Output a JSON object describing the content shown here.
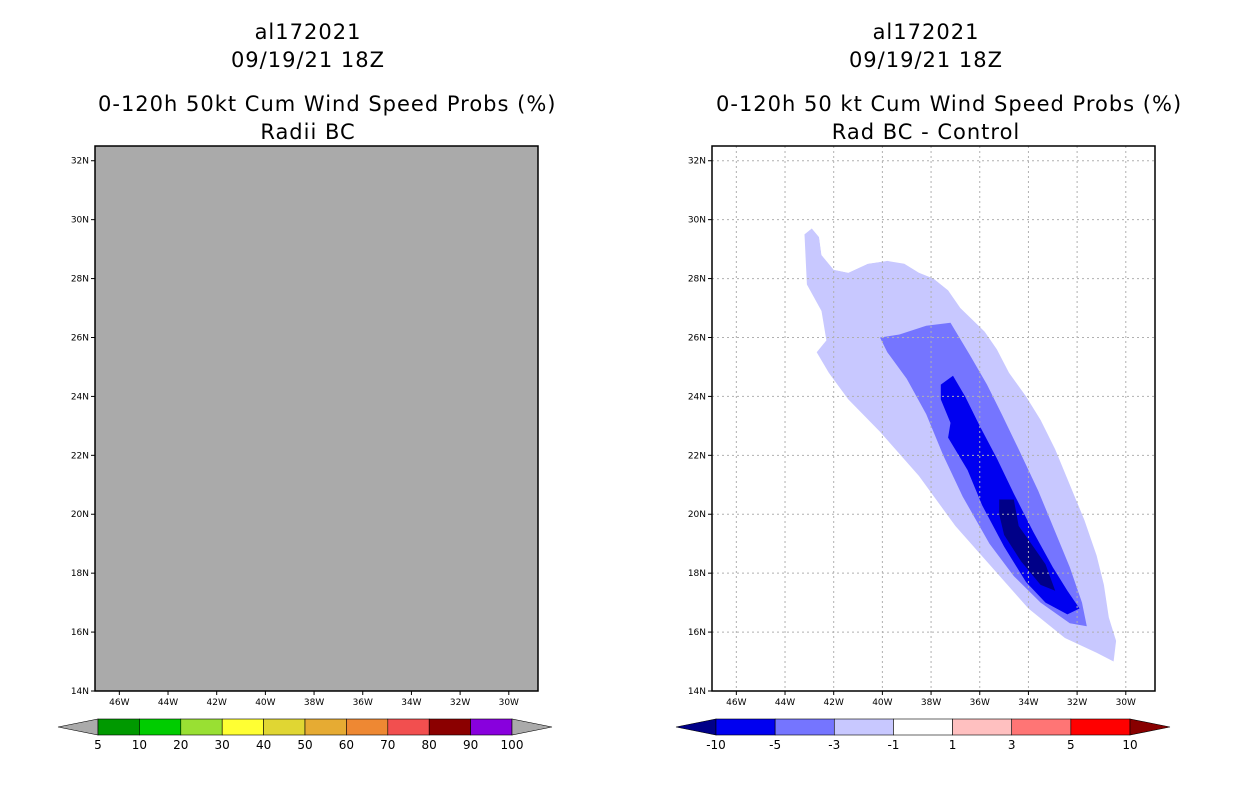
{
  "chart_data": [
    {
      "type": "heatmap",
      "id": "left",
      "title_lines": [
        "al172021",
        "09/19/21 18Z",
        "0-120h 50kt Cum Wind Speed Probs (%)",
        "Radii BC"
      ],
      "x_ticks": [
        "46W",
        "44W",
        "42W",
        "40W",
        "38W",
        "36W",
        "34W",
        "32W",
        "30W"
      ],
      "x_values": [
        -46,
        -44,
        -42,
        -40,
        -38,
        -36,
        -34,
        -32,
        -30
      ],
      "y_ticks": [
        "32N",
        "30N",
        "28N",
        "26N",
        "24N",
        "22N",
        "20N",
        "18N",
        "16N",
        "14N"
      ],
      "y_values": [
        32,
        30,
        28,
        26,
        24,
        22,
        20,
        18,
        16,
        14
      ],
      "xlim": [
        -47,
        -28.8
      ],
      "ylim": [
        14,
        32.5
      ],
      "grid": false,
      "fill_color": "#aaaaaa",
      "colorbar": {
        "labels": [
          "5",
          "10",
          "20",
          "30",
          "40",
          "50",
          "60",
          "70",
          "80",
          "90",
          "100"
        ],
        "colors": [
          "#009900",
          "#00cc00",
          "#99e033",
          "#ffff33",
          "#e0d633",
          "#e6ab33",
          "#ee8833",
          "#f24f4f",
          "#8b0000",
          "#8800dd"
        ],
        "under_color": "#aaaaaa",
        "over_color": "#aaaaaa"
      }
    },
    {
      "type": "heatmap",
      "id": "right",
      "title_lines": [
        "al172021",
        "09/19/21 18Z",
        "0-120h 50 kt Cum Wind Speed Probs (%)",
        "Rad BC - Control"
      ],
      "x_ticks": [
        "46W",
        "44W",
        "42W",
        "40W",
        "38W",
        "36W",
        "34W",
        "32W",
        "30W"
      ],
      "x_values": [
        -46,
        -44,
        -42,
        -40,
        -38,
        -36,
        -34,
        -32,
        -30
      ],
      "y_ticks": [
        "32N",
        "30N",
        "28N",
        "26N",
        "24N",
        "22N",
        "20N",
        "18N",
        "16N",
        "14N"
      ],
      "y_values": [
        32,
        30,
        28,
        26,
        24,
        22,
        20,
        18,
        16,
        14
      ],
      "xlim": [
        -47,
        -28.8
      ],
      "ylim": [
        14,
        32.5
      ],
      "grid": true,
      "regions": [
        {
          "name": "contour-fill-minus1-to-minus3",
          "level": "-3 to -1",
          "color": "#c8c8ff",
          "points": [
            [
              -43.2,
              29.5
            ],
            [
              -42.9,
              29.7
            ],
            [
              -42.6,
              29.4
            ],
            [
              -42.5,
              28.8
            ],
            [
              -42.0,
              28.3
            ],
            [
              -41.4,
              28.2
            ],
            [
              -40.6,
              28.5
            ],
            [
              -39.8,
              28.6
            ],
            [
              -39.1,
              28.5
            ],
            [
              -38.5,
              28.2
            ],
            [
              -37.9,
              28.0
            ],
            [
              -37.3,
              27.6
            ],
            [
              -36.8,
              27.0
            ],
            [
              -36.3,
              26.6
            ],
            [
              -35.8,
              26.2
            ],
            [
              -35.3,
              25.6
            ],
            [
              -34.8,
              24.8
            ],
            [
              -34.1,
              24.0
            ],
            [
              -33.5,
              23.2
            ],
            [
              -32.9,
              22.2
            ],
            [
              -32.3,
              21.0
            ],
            [
              -31.7,
              19.8
            ],
            [
              -31.2,
              18.6
            ],
            [
              -30.9,
              17.6
            ],
            [
              -30.7,
              16.5
            ],
            [
              -30.4,
              15.7
            ],
            [
              -30.5,
              15.0
            ],
            [
              -31.2,
              15.3
            ],
            [
              -32.5,
              15.8
            ],
            [
              -34.0,
              16.8
            ],
            [
              -35.5,
              18.2
            ],
            [
              -37.0,
              19.6
            ],
            [
              -38.5,
              21.3
            ],
            [
              -40.1,
              22.8
            ],
            [
              -41.4,
              23.9
            ],
            [
              -42.2,
              24.8
            ],
            [
              -42.7,
              25.5
            ],
            [
              -42.3,
              25.9
            ],
            [
              -42.5,
              26.9
            ],
            [
              -43.1,
              27.8
            ],
            [
              -43.2,
              29.5
            ]
          ]
        },
        {
          "name": "contour-hole-white",
          "level": "-1 to 1",
          "color": "#ffffff",
          "points": [
            [
              -42.6,
              29.6
            ],
            [
              -41.3,
              29.8
            ],
            [
              -40.6,
              29.6
            ],
            [
              -40.1,
              29.2
            ],
            [
              -39.8,
              28.6
            ],
            [
              -40.6,
              28.5
            ],
            [
              -41.4,
              28.2
            ],
            [
              -42.0,
              28.3
            ],
            [
              -42.5,
              28.8
            ],
            [
              -42.6,
              29.4
            ],
            [
              -42.6,
              29.6
            ]
          ]
        },
        {
          "name": "contour-fill-minus3-to-minus5",
          "level": "-5 to -3",
          "color": "#7575ff",
          "points": [
            [
              -40.1,
              26.0
            ],
            [
              -39.3,
              26.1
            ],
            [
              -38.2,
              26.4
            ],
            [
              -37.2,
              26.5
            ],
            [
              -36.4,
              25.4
            ],
            [
              -35.7,
              24.4
            ],
            [
              -35.1,
              23.4
            ],
            [
              -34.4,
              22.2
            ],
            [
              -33.6,
              20.8
            ],
            [
              -32.9,
              19.4
            ],
            [
              -32.3,
              18.2
            ],
            [
              -31.8,
              17.0
            ],
            [
              -31.6,
              16.2
            ],
            [
              -32.3,
              16.3
            ],
            [
              -33.5,
              17.0
            ],
            [
              -34.6,
              17.9
            ],
            [
              -35.6,
              19.0
            ],
            [
              -36.7,
              20.6
            ],
            [
              -37.5,
              22.0
            ],
            [
              -38.2,
              23.4
            ],
            [
              -39.0,
              24.6
            ],
            [
              -39.8,
              25.5
            ],
            [
              -40.1,
              26.0
            ]
          ]
        },
        {
          "name": "contour-fill-minus5-to-minus10",
          "level": "-10 to -5",
          "color": "#0000f0",
          "points": [
            [
              -37.6,
              24.4
            ],
            [
              -37.1,
              24.7
            ],
            [
              -36.6,
              24.0
            ],
            [
              -36.0,
              23.0
            ],
            [
              -35.3,
              21.9
            ],
            [
              -34.6,
              20.7
            ],
            [
              -33.8,
              19.4
            ],
            [
              -33.0,
              18.2
            ],
            [
              -32.4,
              17.4
            ],
            [
              -31.9,
              16.8
            ],
            [
              -32.4,
              16.6
            ],
            [
              -33.3,
              17.0
            ],
            [
              -34.1,
              17.7
            ],
            [
              -35.0,
              18.9
            ],
            [
              -35.9,
              20.3
            ],
            [
              -36.5,
              21.5
            ],
            [
              -37.3,
              22.6
            ],
            [
              -37.2,
              23.1
            ],
            [
              -37.6,
              23.9
            ],
            [
              -37.6,
              24.4
            ]
          ]
        },
        {
          "name": "contour-fill-below-minus10",
          "level": "< -10",
          "color": "#000088",
          "points": [
            [
              -35.2,
              20.5
            ],
            [
              -34.6,
              20.5
            ],
            [
              -34.4,
              19.6
            ],
            [
              -33.8,
              18.9
            ],
            [
              -33.3,
              18.3
            ],
            [
              -32.9,
              17.4
            ],
            [
              -33.5,
              17.6
            ],
            [
              -34.3,
              18.4
            ],
            [
              -35.0,
              19.3
            ],
            [
              -35.2,
              20.0
            ],
            [
              -35.2,
              20.5
            ]
          ]
        }
      ],
      "colorbar": {
        "labels": [
          "-10",
          "-5",
          "-3",
          "-1",
          "1",
          "3",
          "5",
          "10"
        ],
        "colors": [
          "#0000f0",
          "#7575ff",
          "#c8c8ff",
          "#ffffff",
          "#ffc0c0",
          "#ff7575",
          "#ff0000"
        ],
        "under_color": "#000088",
        "over_color": "#880000"
      }
    }
  ]
}
